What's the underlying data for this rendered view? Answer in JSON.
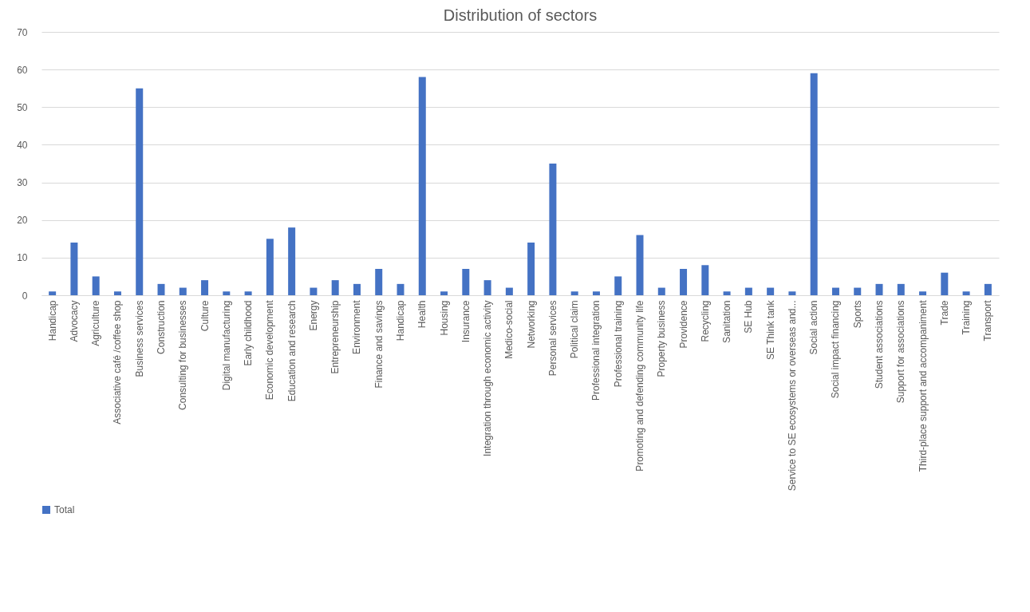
{
  "chart_data": {
    "type": "bar",
    "title": "Distribution of sectors",
    "categories": [
      "Handicap",
      "Advocacy",
      "Agriculture",
      "Associative café /coffee shop",
      "Business services",
      "Construction",
      "Consulting for businesses",
      "Culture",
      "Digital manufacturing",
      "Early childhood",
      "Economic development",
      "Education and research",
      "Energy",
      "Entrepreneurship",
      "Environment",
      "Finance and savings",
      "Handicap",
      "Health",
      "Housing",
      "Insurance",
      "Integration through economic activity",
      "Medico-social",
      "Networking",
      "Personal services",
      "Political claim",
      "Professional integration",
      "Professional training",
      "Promoting and defending community life",
      "Property business",
      "Providence",
      "Recycling",
      "Sanitation",
      "SE Hub",
      "SE Think tank",
      "Service to SE ecosystems or overseas and...",
      "Social action",
      "Social impact financing",
      "Sports",
      "Student associations",
      "Support for associations",
      "Third-place support and accompaniment",
      "Trade",
      "Training",
      "Transport"
    ],
    "series": [
      {
        "name": "Total",
        "color": "#4472c4",
        "values": [
          1,
          14,
          5,
          1,
          55,
          3,
          2,
          4,
          1,
          1,
          15,
          18,
          2,
          4,
          3,
          7,
          3,
          58,
          1,
          7,
          4,
          2,
          14,
          35,
          1,
          1,
          5,
          16,
          2,
          7,
          8,
          1,
          2,
          2,
          1,
          59,
          2,
          2,
          3,
          3,
          1,
          6,
          1,
          3
        ]
      }
    ],
    "ylim": [
      0,
      70
    ],
    "yticks": [
      0,
      10,
      20,
      30,
      40,
      50,
      60,
      70
    ],
    "grid": "y",
    "legend": "bottom"
  }
}
